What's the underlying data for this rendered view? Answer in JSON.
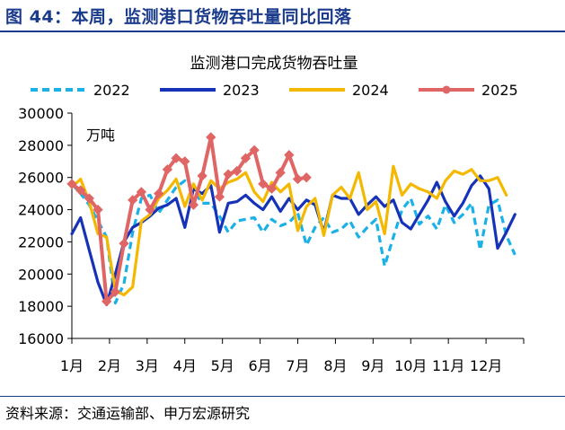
{
  "figure_title": "图 44：本周，监测港口货物吞吐量同比回落",
  "source": "资料来源：交通运输部、申万宏源研究",
  "colors": {
    "accent": "#1a3a8c"
  },
  "chart_data": {
    "type": "line",
    "title": "监测港口完成货物吞吐量",
    "unit_label": "万吨",
    "xlabel": "",
    "ylabel": "",
    "ylim": [
      16000,
      30000
    ],
    "yticks": [
      "16000",
      "18000",
      "20000",
      "22000",
      "24000",
      "26000",
      "28000",
      "30000"
    ],
    "xticks": [
      "1月",
      "2月",
      "3月",
      "4月",
      "5月",
      "6月",
      "7月",
      "8月",
      "9月",
      "10月",
      "11月",
      "12月"
    ],
    "legend_position": "top",
    "grid": false,
    "x_unit": "week of year (1–52)",
    "series": [
      {
        "name": "2022",
        "color": "#1ab0e8",
        "dash": "8,5",
        "marker": false,
        "values": [
          [
            1,
            25600
          ],
          [
            2,
            25000
          ],
          [
            3,
            24300
          ],
          [
            4,
            23300
          ],
          [
            5,
            22300
          ],
          [
            6,
            18200
          ],
          [
            7,
            19400
          ],
          [
            8,
            22600
          ],
          [
            9,
            24700
          ],
          [
            10,
            24900
          ],
          [
            11,
            23800
          ],
          [
            12,
            24600
          ],
          [
            13,
            25400
          ],
          [
            14,
            25800
          ],
          [
            15,
            25200
          ],
          [
            16,
            24400
          ],
          [
            17,
            24400
          ],
          [
            18,
            23600
          ],
          [
            19,
            22600
          ],
          [
            20,
            23300
          ],
          [
            21,
            23400
          ],
          [
            22,
            23500
          ],
          [
            23,
            22600
          ],
          [
            24,
            23400
          ],
          [
            25,
            23000
          ],
          [
            26,
            23200
          ],
          [
            27,
            23800
          ],
          [
            28,
            21800
          ],
          [
            29,
            22900
          ],
          [
            30,
            23500
          ],
          [
            31,
            22600
          ],
          [
            32,
            22800
          ],
          [
            33,
            23300
          ],
          [
            34,
            22300
          ],
          [
            35,
            22900
          ],
          [
            36,
            23400
          ],
          [
            37,
            20500
          ],
          [
            38,
            22300
          ],
          [
            39,
            24000
          ],
          [
            40,
            24700
          ],
          [
            41,
            23100
          ],
          [
            42,
            23600
          ],
          [
            43,
            22800
          ],
          [
            44,
            24300
          ],
          [
            45,
            23200
          ],
          [
            46,
            23700
          ],
          [
            47,
            24400
          ],
          [
            48,
            21500
          ],
          [
            49,
            24300
          ],
          [
            50,
            24600
          ],
          [
            51,
            22400
          ],
          [
            52,
            21200
          ]
        ]
      },
      {
        "name": "2023",
        "color": "#1633b8",
        "dash": "",
        "marker": false,
        "values": [
          [
            1,
            22500
          ],
          [
            2,
            23500
          ],
          [
            3,
            21500
          ],
          [
            4,
            19500
          ],
          [
            5,
            18100
          ],
          [
            6,
            20000
          ],
          [
            7,
            22000
          ],
          [
            8,
            22900
          ],
          [
            9,
            23200
          ],
          [
            10,
            23600
          ],
          [
            11,
            24100
          ],
          [
            12,
            24300
          ],
          [
            13,
            24700
          ],
          [
            14,
            22900
          ],
          [
            15,
            25300
          ],
          [
            16,
            25000
          ],
          [
            17,
            25500
          ],
          [
            18,
            22600
          ],
          [
            19,
            24400
          ],
          [
            20,
            24500
          ],
          [
            21,
            24900
          ],
          [
            22,
            24400
          ],
          [
            23,
            24000
          ],
          [
            24,
            24800
          ],
          [
            25,
            23900
          ],
          [
            26,
            24700
          ],
          [
            27,
            24000
          ],
          [
            28,
            24600
          ],
          [
            29,
            24300
          ],
          [
            30,
            22600
          ],
          [
            31,
            24900
          ],
          [
            32,
            24700
          ],
          [
            33,
            24700
          ],
          [
            34,
            23700
          ],
          [
            35,
            24300
          ],
          [
            36,
            24800
          ],
          [
            37,
            24200
          ],
          [
            38,
            24600
          ],
          [
            39,
            23200
          ],
          [
            40,
            22800
          ],
          [
            41,
            23700
          ],
          [
            42,
            24600
          ],
          [
            43,
            25700
          ],
          [
            44,
            24500
          ],
          [
            45,
            23600
          ],
          [
            46,
            24400
          ],
          [
            47,
            25500
          ],
          [
            48,
            26100
          ],
          [
            49,
            25300
          ],
          [
            50,
            21600
          ],
          [
            51,
            22600
          ],
          [
            52,
            23700
          ]
        ]
      },
      {
        "name": "2024",
        "color": "#f5b800",
        "dash": "",
        "marker": false,
        "values": [
          [
            1,
            25400
          ],
          [
            2,
            25900
          ],
          [
            3,
            24500
          ],
          [
            4,
            22500
          ],
          [
            5,
            22300
          ],
          [
            6,
            19000
          ],
          [
            7,
            18700
          ],
          [
            8,
            19200
          ],
          [
            9,
            23300
          ],
          [
            10,
            23700
          ],
          [
            11,
            24700
          ],
          [
            12,
            25200
          ],
          [
            13,
            25900
          ],
          [
            14,
            24200
          ],
          [
            15,
            25600
          ],
          [
            16,
            24600
          ],
          [
            17,
            25800
          ],
          [
            18,
            25300
          ],
          [
            19,
            25700
          ],
          [
            20,
            25900
          ],
          [
            21,
            26300
          ],
          [
            22,
            25100
          ],
          [
            23,
            24500
          ],
          [
            24,
            25700
          ],
          [
            25,
            25100
          ],
          [
            26,
            25600
          ],
          [
            27,
            22700
          ],
          [
            28,
            24200
          ],
          [
            29,
            24700
          ],
          [
            30,
            22400
          ],
          [
            31,
            24900
          ],
          [
            32,
            25400
          ],
          [
            33,
            24700
          ],
          [
            34,
            26300
          ],
          [
            35,
            24000
          ],
          [
            36,
            24500
          ],
          [
            37,
            22500
          ],
          [
            38,
            26700
          ],
          [
            39,
            24900
          ],
          [
            40,
            25600
          ],
          [
            41,
            25300
          ],
          [
            42,
            25100
          ],
          [
            43,
            24700
          ],
          [
            44,
            25800
          ],
          [
            45,
            26400
          ],
          [
            46,
            26200
          ],
          [
            47,
            26500
          ],
          [
            48,
            25800
          ],
          [
            49,
            25800
          ],
          [
            50,
            26000
          ],
          [
            51,
            24900
          ]
        ]
      },
      {
        "name": "2025",
        "color": "#e06666",
        "dash": "",
        "marker": true,
        "values": [
          [
            1,
            25600
          ],
          [
            2,
            25200
          ],
          [
            3,
            24700
          ],
          [
            4,
            24000
          ],
          [
            5,
            18300
          ],
          [
            6,
            18900
          ],
          [
            7,
            21900
          ],
          [
            8,
            24600
          ],
          [
            9,
            25100
          ],
          [
            10,
            24000
          ],
          [
            11,
            25000
          ],
          [
            12,
            26500
          ],
          [
            13,
            27200
          ],
          [
            14,
            27000
          ],
          [
            15,
            24300
          ],
          [
            16,
            26100
          ],
          [
            17,
            28500
          ],
          [
            18,
            24800
          ],
          [
            19,
            26200
          ],
          [
            20,
            26400
          ],
          [
            21,
            27200
          ],
          [
            22,
            27700
          ],
          [
            23,
            25600
          ],
          [
            24,
            25300
          ],
          [
            25,
            26300
          ],
          [
            26,
            27400
          ],
          [
            27,
            25900
          ],
          [
            28,
            26000
          ]
        ]
      }
    ]
  }
}
